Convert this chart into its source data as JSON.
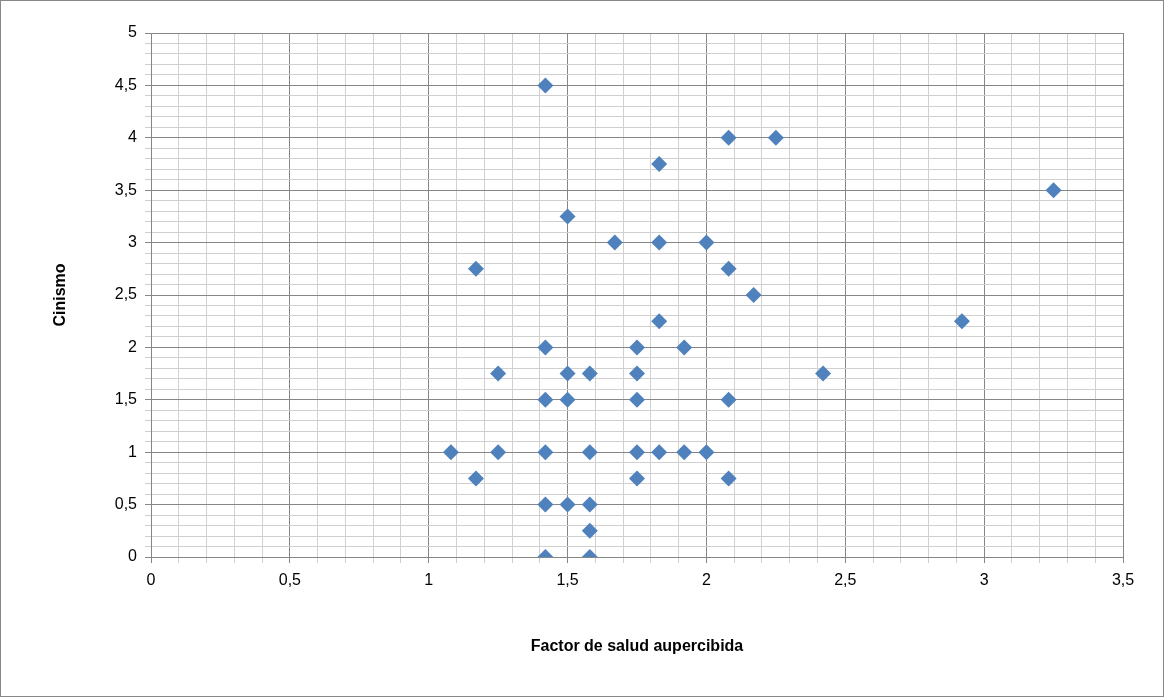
{
  "chart_data": {
    "type": "scatter",
    "xlabel": "Factor de salud aupercibida",
    "ylabel": "Cinismo",
    "marker": "diamond",
    "grid": true,
    "legend": false,
    "series": [
      {
        "color": "#4f81bd",
        "x": [
          1.42,
          2.08,
          2.25,
          1.83,
          3.25,
          1.5,
          1.67,
          1.83,
          2,
          1.17,
          2.08,
          2.17,
          1.83,
          2.92,
          1.42,
          1.75,
          1.92,
          1.25,
          1.5,
          1.58,
          1.75,
          2.42,
          1.42,
          1.5,
          1.75,
          2.08,
          1.08,
          1.25,
          1.42,
          1.58,
          1.75,
          1.83,
          1.92,
          2,
          1.17,
          1.75,
          2.08,
          1.42,
          1.5,
          1.58,
          1.58,
          1.42,
          1.58
        ],
        "values": [
          4.5,
          4,
          4,
          3.75,
          3.5,
          3.25,
          3,
          3,
          3,
          2.75,
          2.75,
          2.5,
          2.25,
          2.25,
          2,
          2,
          2,
          1.75,
          1.75,
          1.75,
          1.75,
          1.75,
          1.5,
          1.5,
          1.5,
          1.5,
          1,
          1,
          1,
          1,
          1,
          1,
          1,
          1,
          0.75,
          0.75,
          0.75,
          0.5,
          0.5,
          0.5,
          0.25,
          0,
          0
        ]
      }
    ],
    "xlim": [
      0,
      3.5
    ],
    "xticks": [
      0,
      {
        "value": 0.1,
        "label": null
      },
      {
        "value": 0.2,
        "label": null
      },
      {
        "value": 0.3,
        "label": null
      },
      {
        "value": 0.4,
        "label": null
      },
      {
        "value": 0.5,
        "label": "0,5"
      },
      {
        "value": 0.6,
        "label": null
      },
      {
        "value": 0.7,
        "label": null
      },
      {
        "value": 0.8,
        "label": null
      },
      {
        "value": 0.9,
        "label": null
      },
      1,
      {
        "value": 1.1,
        "label": null
      },
      {
        "value": 1.2,
        "label": null
      },
      {
        "value": 1.3,
        "label": null
      },
      {
        "value": 1.4,
        "label": null
      },
      {
        "value": 1.5,
        "label": "1,5"
      },
      {
        "value": 1.6,
        "label": null
      },
      {
        "value": 1.7,
        "label": null
      },
      {
        "value": 1.8,
        "label": null
      },
      {
        "value": 1.9,
        "label": null
      },
      2,
      {
        "value": 2.1,
        "label": null
      },
      {
        "value": 2.2,
        "label": null
      },
      {
        "value": 2.3,
        "label": null
      },
      {
        "value": 2.4,
        "label": null
      },
      {
        "value": 2.5,
        "label": "2,5"
      },
      {
        "value": 2.6,
        "label": null
      },
      {
        "value": 2.7,
        "label": null
      },
      {
        "value": 2.8,
        "label": null
      },
      {
        "value": 2.9,
        "label": null
      },
      3,
      {
        "value": 3.1,
        "label": null
      },
      {
        "value": 3.2,
        "label": null
      },
      {
        "value": 3.3,
        "label": null
      },
      {
        "value": 3.4,
        "label": null
      },
      {
        "value": 3.5,
        "label": "3,5"
      }
    ],
    "ylim": [
      0,
      5
    ],
    "yticks": [
      0,
      {
        "value": 0.1,
        "label": null
      },
      {
        "value": 0.2,
        "label": null
      },
      {
        "value": 0.3,
        "label": null
      },
      {
        "value": 0.4,
        "label": null
      },
      {
        "value": 0.5,
        "label": "0,5"
      },
      {
        "value": 0.6,
        "label": null
      },
      {
        "value": 0.7,
        "label": null
      },
      {
        "value": 0.8,
        "label": null
      },
      {
        "value": 0.9,
        "label": null
      },
      1,
      {
        "value": 1.1,
        "label": null
      },
      {
        "value": 1.2,
        "label": null
      },
      {
        "value": 1.3,
        "label": null
      },
      {
        "value": 1.4,
        "label": null
      },
      {
        "value": 1.5,
        "label": "1,5"
      },
      {
        "value": 1.6,
        "label": null
      },
      {
        "value": 1.7,
        "label": null
      },
      {
        "value": 1.8,
        "label": null
      },
      {
        "value": 1.9,
        "label": null
      },
      2,
      {
        "value": 2.1,
        "label": null
      },
      {
        "value": 2.2,
        "label": null
      },
      {
        "value": 2.3,
        "label": null
      },
      {
        "value": 2.4,
        "label": null
      },
      {
        "value": 2.5,
        "label": "2,5"
      },
      {
        "value": 2.6,
        "label": null
      },
      {
        "value": 2.7,
        "label": null
      },
      {
        "value": 2.8,
        "label": null
      },
      {
        "value": 2.9,
        "label": null
      },
      3,
      {
        "value": 3.1,
        "label": null
      },
      {
        "value": 3.2,
        "label": null
      },
      {
        "value": 3.3,
        "label": null
      },
      {
        "value": 3.4,
        "label": null
      },
      {
        "value": 3.5,
        "label": "3,5"
      },
      {
        "value": 3.6,
        "label": null
      },
      {
        "value": 3.7,
        "label": null
      },
      {
        "value": 3.8,
        "label": null
      },
      {
        "value": 3.9,
        "label": null
      },
      4,
      {
        "value": 4.1,
        "label": null
      },
      {
        "value": 4.2,
        "label": null
      },
      {
        "value": 4.3,
        "label": null
      },
      {
        "value": 4.4,
        "label": null
      },
      {
        "value": 4.5,
        "label": "4,5"
      },
      {
        "value": 4.6,
        "label": null
      },
      {
        "value": 4.7,
        "label": null
      },
      {
        "value": 4.8,
        "label": null
      },
      {
        "value": 4.9,
        "label": null
      },
      5
    ]
  }
}
